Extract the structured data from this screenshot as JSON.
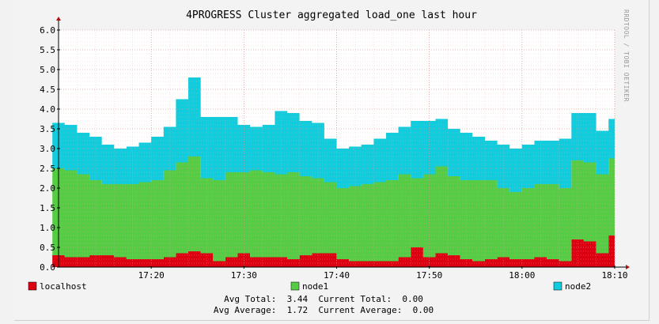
{
  "chart_data": {
    "type": "area",
    "stacked": true,
    "title": "4PROGRESS Cluster aggregated load_one last hour",
    "side_label": "RRDTOOL / TOBI OETIKER",
    "ylim": [
      0,
      6.0
    ],
    "y_ticks": [
      "0.0",
      "0.5",
      "1.0",
      "1.5",
      "2.0",
      "2.5",
      "3.0",
      "3.5",
      "4.0",
      "4.5",
      "5.0",
      "5.5",
      "6.0"
    ],
    "x_ticks": [
      "17:20",
      "17:30",
      "17:40",
      "17:50",
      "18:00",
      "18:10"
    ],
    "grid": true,
    "x": [
      "17:09:20",
      "17:10:40",
      "17:12:00",
      "17:13:20",
      "17:14:40",
      "17:16:00",
      "17:17:20",
      "17:18:40",
      "17:20:00",
      "17:21:20",
      "17:22:40",
      "17:24:00",
      "17:25:20",
      "17:26:40",
      "17:28:00",
      "17:29:20",
      "17:30:40",
      "17:32:00",
      "17:33:20",
      "17:34:40",
      "17:36:00",
      "17:37:20",
      "17:38:40",
      "17:40:00",
      "17:41:20",
      "17:42:40",
      "17:44:00",
      "17:45:20",
      "17:46:40",
      "17:48:00",
      "17:49:20",
      "17:50:40",
      "17:52:00",
      "17:53:20",
      "17:54:40",
      "17:56:00",
      "17:57:20",
      "17:58:40",
      "18:00:00",
      "18:01:20",
      "18:02:40",
      "18:04:00",
      "18:05:20",
      "18:06:40",
      "18:08:00",
      "18:09:20"
    ],
    "series": [
      {
        "name": "localhost",
        "color": "#dd0011",
        "values": [
          0.3,
          0.25,
          0.25,
          0.3,
          0.3,
          0.25,
          0.2,
          0.2,
          0.2,
          0.25,
          0.35,
          0.4,
          0.35,
          0.15,
          0.25,
          0.35,
          0.25,
          0.25,
          0.25,
          0.2,
          0.3,
          0.35,
          0.35,
          0.2,
          0.15,
          0.15,
          0.15,
          0.15,
          0.25,
          0.5,
          0.25,
          0.35,
          0.3,
          0.2,
          0.15,
          0.2,
          0.25,
          0.2,
          0.2,
          0.25,
          0.2,
          0.15,
          0.7,
          0.65,
          0.35,
          0.8
        ]
      },
      {
        "name": "node1",
        "color": "#55cc44",
        "values": [
          2.2,
          2.2,
          2.1,
          1.9,
          1.8,
          1.85,
          1.9,
          1.95,
          2.0,
          2.2,
          2.3,
          2.4,
          1.9,
          2.05,
          2.15,
          2.05,
          2.2,
          2.15,
          2.1,
          2.2,
          2.0,
          1.9,
          1.8,
          1.8,
          1.9,
          1.95,
          2.0,
          2.05,
          2.1,
          1.75,
          2.1,
          2.2,
          2.0,
          2.0,
          2.05,
          2.0,
          1.75,
          1.7,
          1.8,
          1.85,
          1.9,
          1.85,
          2.0,
          2.0,
          2.0,
          1.95
        ]
      },
      {
        "name": "node2",
        "color": "#11ccdd",
        "values": [
          1.15,
          1.15,
          1.05,
          1.1,
          1.0,
          0.9,
          0.95,
          1.0,
          1.1,
          1.1,
          1.6,
          2.0,
          1.55,
          1.6,
          1.4,
          1.2,
          1.1,
          1.2,
          1.6,
          1.5,
          1.4,
          1.4,
          1.1,
          1.0,
          1.0,
          1.0,
          1.1,
          1.2,
          1.2,
          1.45,
          1.35,
          1.2,
          1.2,
          1.2,
          1.1,
          1.0,
          1.1,
          1.1,
          1.1,
          1.1,
          1.1,
          1.25,
          1.2,
          1.25,
          1.1,
          1.0
        ]
      }
    ],
    "legend": [
      {
        "label": "localhost",
        "color": "#dd0011"
      },
      {
        "label": "node1",
        "color": "#55cc44"
      },
      {
        "label": "node2",
        "color": "#11ccdd"
      }
    ],
    "summary_lines": [
      "Avg Total:  3.44  Current Total:  0.00",
      "Avg Average:  1.72  Current Average:  0.00"
    ]
  }
}
